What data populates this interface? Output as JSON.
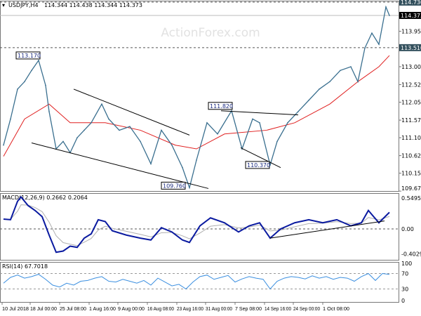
{
  "header": {
    "symbol": "USDJPY,H4",
    "ohlc": "114.344 114.438 114.344 114.373"
  },
  "watermark": "ActionForex.com",
  "colors": {
    "price": "#3a6f8f",
    "ma": "#e02020",
    "macd": "#0a1aa0",
    "signal": "#b0b0b0",
    "rsi": "#3b8fe0",
    "tag_bg": "#34515e"
  },
  "chart_data": [
    {
      "type": "line",
      "title": "USDJPY,H4",
      "yticks": [
        "113.950",
        "113.000",
        "112.520",
        "112.050",
        "111.570",
        "111.100",
        "110.620",
        "110.150",
        "109.670"
      ],
      "ytick_values": [
        113.95,
        113.0,
        112.52,
        112.05,
        111.57,
        111.1,
        110.62,
        110.15,
        109.67
      ],
      "ylim": [
        109.6,
        114.8
      ],
      "xlim": [
        0,
        114
      ],
      "levels": [
        {
          "label": "114.730",
          "value": 114.73,
          "style": "dashed"
        },
        {
          "label": "113.510",
          "value": 113.51,
          "style": "dashed"
        },
        {
          "label": "114.373",
          "value": 114.373,
          "style": "current"
        }
      ],
      "price": {
        "x": [
          0,
          2,
          4,
          6,
          8,
          10,
          12,
          13,
          15,
          17,
          19,
          21,
          23,
          25,
          28,
          30,
          33,
          36,
          39,
          42,
          45,
          48,
          51,
          53,
          55,
          58,
          61,
          65,
          68,
          71,
          73,
          76,
          78,
          81,
          84,
          87,
          90,
          93,
          96,
          99,
          101,
          103,
          105,
          107,
          109,
          110
        ],
        "y": [
          110.9,
          111.6,
          112.4,
          112.6,
          112.9,
          113.17,
          112.5,
          111.8,
          110.8,
          111.0,
          110.7,
          111.1,
          111.3,
          111.5,
          112.0,
          111.6,
          111.3,
          111.4,
          111.0,
          110.4,
          111.3,
          110.9,
          110.3,
          109.76,
          110.5,
          111.5,
          111.2,
          111.82,
          110.8,
          111.6,
          111.5,
          110.37,
          111.0,
          111.5,
          111.8,
          112.1,
          112.4,
          112.6,
          112.9,
          113.0,
          112.6,
          113.5,
          113.9,
          113.6,
          114.6,
          114.37
        ]
      },
      "ma": {
        "x": [
          0,
          6,
          13,
          19,
          29,
          39,
          49,
          55,
          63,
          75,
          83,
          93,
          101,
          107,
          110
        ],
        "y": [
          110.6,
          111.6,
          112.0,
          111.5,
          111.5,
          111.3,
          110.9,
          110.8,
          111.2,
          111.3,
          111.5,
          112.0,
          112.6,
          113.0,
          113.3
        ]
      },
      "trendlines": [
        {
          "x": [
            20,
            53
          ],
          "y": [
            112.4,
            111.17
          ]
        },
        {
          "x": [
            8,
            58.4
          ],
          "y": [
            110.96,
            109.74
          ]
        },
        {
          "x": [
            62,
            84
          ],
          "y": [
            111.82,
            111.71
          ]
        },
        {
          "x": [
            67.6,
            79
          ],
          "y": [
            110.83,
            110.3
          ]
        }
      ],
      "annotations": [
        {
          "label": "113.170",
          "x": 10,
          "y": 113.17
        },
        {
          "label": "111.820",
          "x": 62,
          "y": 111.82
        },
        {
          "label": "110.370",
          "x": 76,
          "y": 110.37
        },
        {
          "label": "109.760",
          "x": 53,
          "y": 109.76
        }
      ]
    },
    {
      "type": "line",
      "title": "MACD(12,26,9) 0.2662 0.2064",
      "yticks": [
        "0.5495",
        "0.00",
        "-0.4029"
      ],
      "ytick_values": [
        0.5495,
        0,
        -0.4029
      ],
      "ylim": [
        -0.4029,
        0.5495
      ],
      "macd": {
        "x": [
          0,
          2,
          4,
          5,
          7,
          9,
          11,
          13,
          15,
          17,
          19,
          21,
          23,
          25,
          27,
          29,
          31,
          35,
          39,
          42,
          45,
          48,
          51,
          53,
          56,
          59,
          63,
          67,
          70,
          73,
          76,
          79,
          83,
          87,
          91,
          95,
          99,
          102,
          104,
          107,
          110
        ],
        "y": [
          0.16,
          0.15,
          0.45,
          0.52,
          0.38,
          0.3,
          0.2,
          -0.1,
          -0.38,
          -0.36,
          -0.28,
          -0.3,
          -0.15,
          -0.08,
          0.15,
          0.12,
          -0.03,
          -0.1,
          -0.15,
          -0.18,
          0.02,
          -0.05,
          -0.18,
          -0.22,
          0.05,
          0.18,
          0.1,
          -0.05,
          0.05,
          0.1,
          -0.15,
          0.0,
          0.1,
          0.15,
          0.1,
          0.15,
          0.05,
          0.1,
          0.3,
          0.1,
          0.27
        ]
      },
      "trendline": {
        "x": [
          76,
          108.6
        ],
        "y": [
          -0.15,
          0.13
        ]
      }
    },
    {
      "type": "line",
      "title": "RSI(14) 67.7018",
      "yticks": [
        "100",
        "70",
        "30",
        "0"
      ],
      "ytick_values": [
        100,
        70,
        30,
        0
      ],
      "ylim": [
        0,
        100
      ],
      "rsi": {
        "x": [
          0,
          2,
          4,
          6,
          8,
          10,
          12,
          14,
          16,
          18,
          20,
          22,
          24,
          26,
          28,
          30,
          32,
          34,
          36,
          38,
          40,
          42,
          44,
          46,
          48,
          50,
          52,
          54,
          56,
          58,
          60,
          62,
          64,
          66,
          68,
          70,
          72,
          74,
          76,
          78,
          80,
          82,
          84,
          86,
          88,
          90,
          92,
          94,
          96,
          98,
          100,
          102,
          104,
          106,
          108,
          110
        ],
        "y": [
          45,
          60,
          66,
          58,
          62,
          68,
          55,
          40,
          35,
          45,
          40,
          50,
          52,
          58,
          62,
          50,
          48,
          55,
          50,
          45,
          52,
          40,
          58,
          48,
          38,
          42,
          30,
          48,
          62,
          66,
          55,
          60,
          65,
          48,
          56,
          62,
          58,
          55,
          30,
          50,
          58,
          62,
          60,
          56,
          64,
          58,
          62,
          55,
          60,
          58,
          50,
          62,
          70,
          52,
          70,
          67.7
        ]
      }
    }
  ],
  "xaxis": {
    "labels": [
      "10 Jul 2018",
      "18 Jul 00:00",
      "25 Jul 08:00",
      "1 Aug 16:00",
      "9 Aug 00:00",
      "16 Aug 08:00",
      "23 Aug 16:00",
      "31 Aug 00:00",
      "7 Sep 08:00",
      "14 Sep 16:00",
      "24 Sep 00:00",
      "1 Oct 08:00"
    ]
  }
}
